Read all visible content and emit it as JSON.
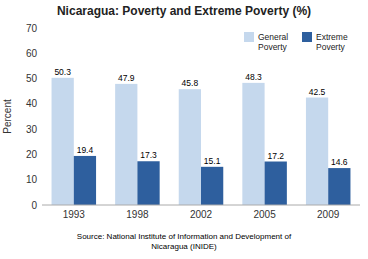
{
  "chart_data": {
    "type": "bar",
    "title": "Nicaragua: Poverty and Extreme Poverty (%)",
    "categories": [
      "1993",
      "1998",
      "2002",
      "2005",
      "2009"
    ],
    "series": [
      {
        "name": "General\nPoverty",
        "color": "#c5d8ed",
        "values": [
          50.3,
          47.9,
          45.8,
          48.3,
          42.5
        ]
      },
      {
        "name": "Extreme\nPoverty",
        "color": "#2e5f9e",
        "values": [
          19.4,
          17.3,
          15.1,
          17.2,
          14.6
        ]
      }
    ],
    "ylabel": "Percent",
    "ylim": [
      0,
      70
    ],
    "yticks": [
      0,
      10,
      20,
      30,
      40,
      50,
      60,
      70
    ],
    "grid": false,
    "legend": "upper right",
    "data_labels": true,
    "annotations": [
      "Source: National Institute of Information and Development of",
      "Nicaragua (INIDE)"
    ]
  }
}
